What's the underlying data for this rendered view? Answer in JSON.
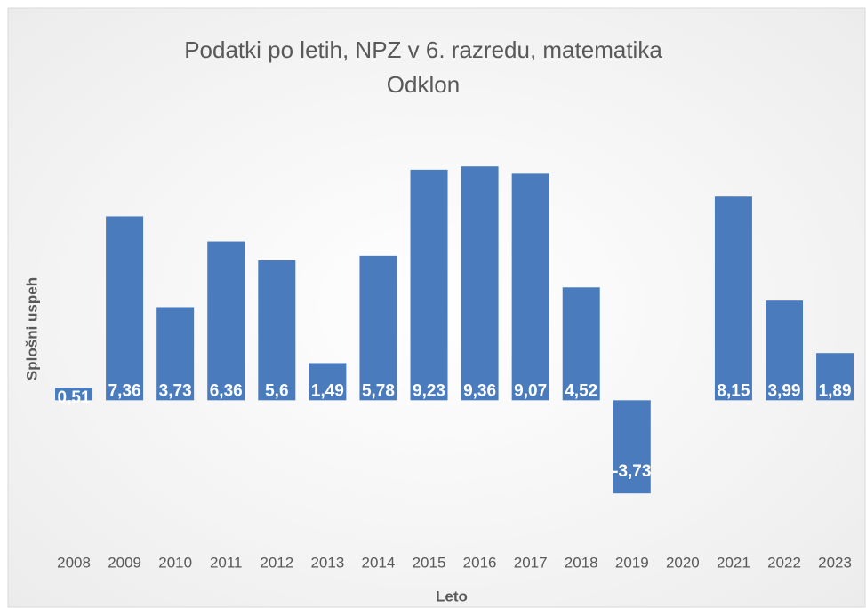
{
  "chart_data": {
    "type": "bar",
    "title": "Podatki po letih, NPZ v 6. razredu, matematika",
    "subtitle": "Odklon",
    "x_label": "Leto",
    "y_label": "Splošni uspeh",
    "categories": [
      "2008",
      "2009",
      "2010",
      "2011",
      "2012",
      "2013",
      "2014",
      "2015",
      "2016",
      "2017",
      "2018",
      "2019",
      "2020",
      "2021",
      "2022",
      "2023"
    ],
    "values": [
      0.51,
      7.36,
      3.73,
      6.36,
      5.6,
      1.49,
      5.78,
      9.23,
      9.36,
      9.07,
      4.52,
      -3.73,
      null,
      8.15,
      3.99,
      1.89
    ],
    "value_labels": [
      "0,51",
      "7,36",
      "3,73",
      "6,36",
      "5,6",
      "1,49",
      "5,78",
      "9,23",
      "9,36",
      "9,07",
      "4,52",
      "-3,73",
      null,
      "8,15",
      "3,99",
      "1,89"
    ],
    "color": "#4a7cbd",
    "ylim": [
      -6,
      12
    ]
  }
}
